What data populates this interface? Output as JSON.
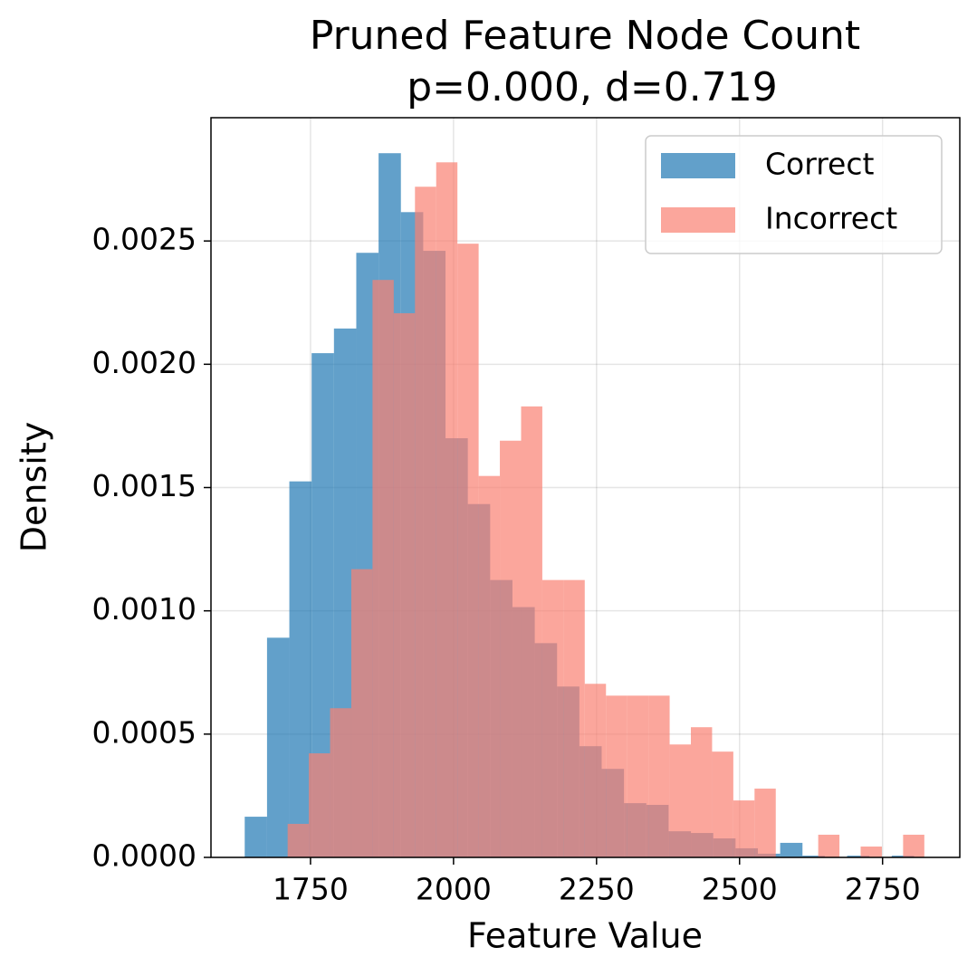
{
  "chart_data": {
    "type": "histogram",
    "title": "Pruned Feature Node Count",
    "subtitle": "p=0.000, d=0.719",
    "x_label": "Feature Value",
    "y_label": "Density",
    "xlim": [
      1576,
      2885
    ],
    "ylim": [
      0,
      0.003
    ],
    "xticks": [
      1750,
      2000,
      2250,
      2500,
      2750
    ],
    "yticks": [
      {
        "value": 0,
        "label": "0.0000"
      },
      {
        "value": 0.0005,
        "label": "0.0005"
      },
      {
        "value": 0.001,
        "label": "0.0010"
      },
      {
        "value": 0.0015,
        "label": "0.0015"
      },
      {
        "value": 0.002,
        "label": "0.0020"
      },
      {
        "value": 0.0025,
        "label": "0.0025"
      }
    ],
    "grid": true,
    "legend": "upper right",
    "alpha": 0.7,
    "series": [
      {
        "name": "Correct",
        "color": "#1f77b4",
        "bins": [
          1635,
          1674,
          1713,
          1752,
          1791,
          1830,
          1869,
          1908,
          1947,
          1986,
          2025,
          2064,
          2103,
          2142,
          2181,
          2220,
          2259,
          2298,
          2337,
          2376,
          2415,
          2454,
          2493,
          2532,
          2571,
          2610,
          2649,
          2688,
          2727,
          2766,
          2805
        ],
        "values": [
          0.000165,
          0.000891,
          0.001525,
          0.002045,
          0.002145,
          0.002452,
          0.002856,
          0.002617,
          0.00246,
          0.0017,
          0.001433,
          0.001125,
          0.001015,
          0.000869,
          0.000693,
          0.000451,
          0.000359,
          0.00022,
          0.000213,
          0.000106,
          9.9e-05,
          7.7e-05,
          3.7e-05,
          1.5e-05,
          5.9e-05,
          7e-06,
          0,
          7e-06,
          0,
          7e-06
        ]
      },
      {
        "name": "Incorrect",
        "color": "#fa8072",
        "bins": [
          1710,
          1747.1,
          1784.2,
          1821.3,
          1858.4,
          1895.5,
          1932.6,
          1969.7,
          2006.8,
          2043.9,
          2081,
          2118.1,
          2155.2,
          2192.3,
          2229.4,
          2266.5,
          2303.6,
          2340.7,
          2377.8,
          2414.9,
          2452,
          2489.1,
          2526.2,
          2563.3,
          2600.4,
          2637.5,
          2674.6,
          2711.7,
          2748.8,
          2785.9,
          2823
        ],
        "values": [
          0.000136,
          0.000422,
          0.000605,
          0.001169,
          0.002342,
          0.002207,
          0.00272,
          0.002819,
          0.002489,
          0.001547,
          0.00169,
          0.001829,
          0.001125,
          0.001125,
          0.000704,
          0.000656,
          0.000656,
          0.000656,
          0.000458,
          0.000528,
          0.000429,
          0.000231,
          0.000279,
          0,
          0,
          9.2e-05,
          0,
          4.4e-05,
          0,
          9.2e-05
        ]
      }
    ]
  }
}
